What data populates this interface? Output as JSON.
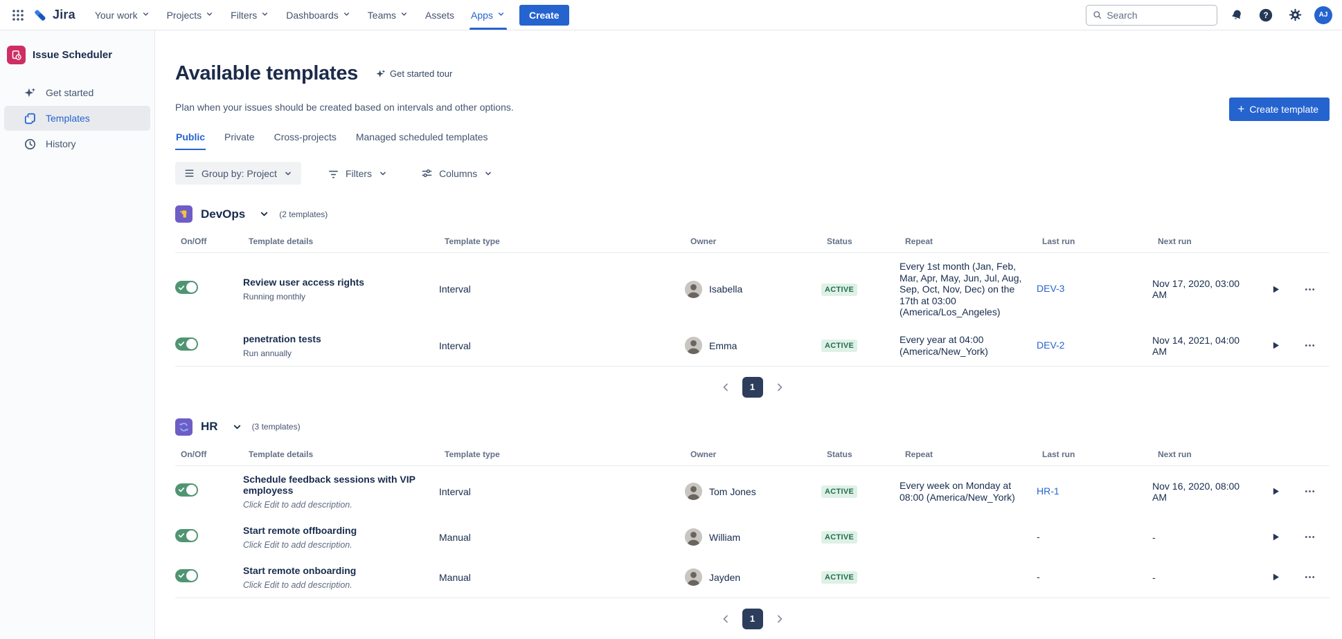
{
  "topnav": {
    "logo_text": "Jira",
    "items": [
      {
        "label": "Your work",
        "chevron": true,
        "active": false
      },
      {
        "label": "Projects",
        "chevron": true,
        "active": false
      },
      {
        "label": "Filters",
        "chevron": true,
        "active": false
      },
      {
        "label": "Dashboards",
        "chevron": true,
        "active": false
      },
      {
        "label": "Teams",
        "chevron": true,
        "active": false
      },
      {
        "label": "Assets",
        "chevron": false,
        "active": false
      },
      {
        "label": "Apps",
        "chevron": true,
        "active": true
      }
    ],
    "create_label": "Create",
    "search_placeholder": "Search",
    "icons": [
      "app-switcher-icon",
      "notification-bell-icon",
      "help-icon",
      "settings-gear-icon"
    ],
    "avatar_initials": "AJ"
  },
  "sidebar": {
    "app_title": "Issue Scheduler",
    "app_icon": "issue-scheduler-icon",
    "items": [
      {
        "label": "Get started",
        "icon": "sparkle-icon",
        "active": false
      },
      {
        "label": "Templates",
        "icon": "copy-pages-icon",
        "active": true
      },
      {
        "label": "History",
        "icon": "clock-icon",
        "active": false
      }
    ]
  },
  "header": {
    "title": "Available templates",
    "tour_label": "Get started tour",
    "description": "Plan when your issues should be created based on intervals and other options.",
    "create_template_label": "Create template"
  },
  "tabs": [
    {
      "label": "Public",
      "active": true
    },
    {
      "label": "Private",
      "active": false
    },
    {
      "label": "Cross-projects",
      "active": false
    },
    {
      "label": "Managed scheduled templates",
      "active": false
    }
  ],
  "toolbar": {
    "group_by_label": "Group by: Project",
    "filters_label": "Filters",
    "columns_label": "Columns"
  },
  "table_headers": [
    "On/Off",
    "Template details",
    "Template type",
    "Owner",
    "Status",
    "Repeat",
    "Last run",
    "Next run"
  ],
  "sections": [
    {
      "project": "DevOps",
      "count_label": "(2 templates)",
      "avatar_glyph": "tool-yellow",
      "page": "1",
      "rows": [
        {
          "toggle_on": true,
          "title": "Review user access rights",
          "subtitle": "Running monthly",
          "subtitle_italic": false,
          "type": "Interval",
          "owner": "Isabella",
          "status": "ACTIVE",
          "repeat": "Every 1st month (Jan, Feb, Mar, Apr, May, Jun, Jul, Aug, Sep, Oct, Nov, Dec) on the 17th at 03:00 (America/Los_Angeles)",
          "last_run": "DEV-3",
          "last_run_is_link": true,
          "next_run": "Nov 17, 2020, 03:00 AM"
        },
        {
          "toggle_on": true,
          "title": "penetration tests",
          "subtitle": "Run annually",
          "subtitle_italic": false,
          "type": "Interval",
          "owner": "Emma",
          "status": "ACTIVE",
          "repeat": "Every year at 04:00 (America/New_York)",
          "last_run": "DEV-2",
          "last_run_is_link": true,
          "next_run": "Nov 14, 2021, 04:00 AM"
        }
      ]
    },
    {
      "project": "HR",
      "count_label": "(3 templates)",
      "avatar_glyph": "sync-blue",
      "page": "1",
      "rows": [
        {
          "toggle_on": true,
          "title": "Schedule feedback sessions with VIP employess",
          "subtitle": "Click Edit to add description.",
          "subtitle_italic": true,
          "type": "Interval",
          "owner": "Tom Jones",
          "status": "ACTIVE",
          "repeat": "Every week on Monday at 08:00 (America/New_York)",
          "last_run": "HR-1",
          "last_run_is_link": true,
          "next_run": "Nov 16, 2020, 08:00 AM"
        },
        {
          "toggle_on": true,
          "title": "Start remote offboarding",
          "subtitle": "Click Edit to add description.",
          "subtitle_italic": true,
          "type": "Manual",
          "owner": "William",
          "status": "ACTIVE",
          "repeat": "",
          "last_run": "-",
          "last_run_is_link": false,
          "next_run": "-"
        },
        {
          "toggle_on": true,
          "title": "Start remote onboarding",
          "subtitle": "Click Edit to add description.",
          "subtitle_italic": true,
          "type": "Manual",
          "owner": "Jayden",
          "status": "ACTIVE",
          "repeat": "",
          "last_run": "-",
          "last_run_is_link": false,
          "next_run": "-"
        }
      ]
    }
  ],
  "colors": {
    "accent_blue": "#2563CF",
    "toggle_green": "#4F9572",
    "status_green_text": "#216E4E",
    "status_green_bg": "#DFF1E7",
    "app_icon_pink": "#CE2E63",
    "project_avatar_purple": "#6E5DC6",
    "pagination_dark": "#2C3E5C"
  }
}
